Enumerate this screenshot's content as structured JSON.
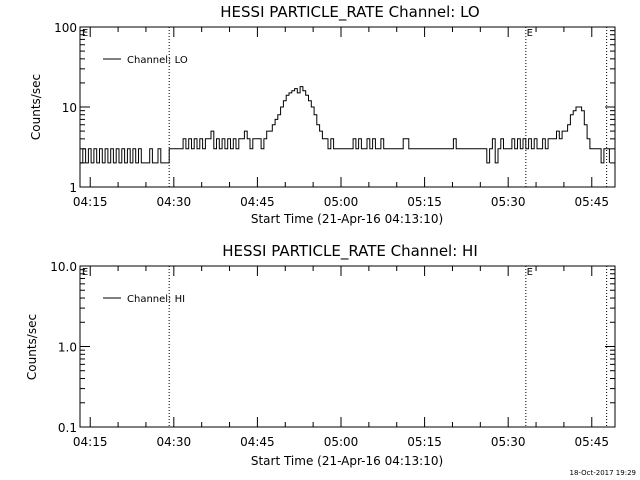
{
  "chart_data": [
    {
      "type": "line",
      "title": "HESSI PARTICLE_RATE Channel: LO",
      "xlabel": "Start Time (21-Apr-16 04:13:10)",
      "ylabel": "Counts/sec",
      "yscale": "log",
      "ylim": [
        1,
        100
      ],
      "xlim": [
        "04:13:10",
        "05:49:10"
      ],
      "yticks": [
        "1",
        "10",
        "100"
      ],
      "xticks": [
        "04:15",
        "04:30",
        "04:45",
        "05:00",
        "05:15",
        "05:30",
        "05:45"
      ],
      "legend": {
        "label": "Channel: LO",
        "placement": "top-left"
      },
      "marker_labels": [
        "E",
        "E"
      ],
      "series": [
        {
          "name": "Channel: LO",
          "points": [
            [
              "04:13:10",
              2
            ],
            [
              "04:13:40",
              3
            ],
            [
              "04:14:10",
              2
            ],
            [
              "04:14:40",
              3
            ],
            [
              "04:15:10",
              2
            ],
            [
              "04:15:40",
              3
            ],
            [
              "04:16:10",
              2
            ],
            [
              "04:16:40",
              3
            ],
            [
              "04:17:10",
              2
            ],
            [
              "04:17:40",
              3
            ],
            [
              "04:18:10",
              2
            ],
            [
              "04:18:40",
              3
            ],
            [
              "04:19:10",
              2
            ],
            [
              "04:19:40",
              3
            ],
            [
              "04:20:10",
              2
            ],
            [
              "04:20:40",
              3
            ],
            [
              "04:21:10",
              2
            ],
            [
              "04:21:40",
              3
            ],
            [
              "04:22:10",
              2
            ],
            [
              "04:22:40",
              3
            ],
            [
              "04:23:10",
              2
            ],
            [
              "04:23:40",
              3
            ],
            [
              "04:24:10",
              2
            ],
            [
              "04:24:40",
              2
            ],
            [
              "04:25:10",
              2
            ],
            [
              "04:25:40",
              3
            ],
            [
              "04:26:10",
              2
            ],
            [
              "04:26:40",
              2
            ],
            [
              "04:27:10",
              3
            ],
            [
              "04:27:40",
              2
            ],
            [
              "04:28:10",
              2
            ],
            [
              "04:28:40",
              2
            ],
            [
              "04:29:10",
              3
            ],
            [
              "04:29:40",
              3
            ],
            [
              "04:30:10",
              3
            ],
            [
              "04:30:40",
              3
            ],
            [
              "04:31:10",
              3
            ],
            [
              "04:31:40",
              4
            ],
            [
              "04:32:10",
              3
            ],
            [
              "04:32:40",
              4
            ],
            [
              "04:33:10",
              3
            ],
            [
              "04:33:40",
              4
            ],
            [
              "04:34:10",
              3
            ],
            [
              "04:34:40",
              4
            ],
            [
              "04:35:10",
              3
            ],
            [
              "04:35:40",
              4
            ],
            [
              "04:36:10",
              4
            ],
            [
              "04:36:40",
              5
            ],
            [
              "04:37:10",
              3
            ],
            [
              "04:37:40",
              4
            ],
            [
              "04:38:10",
              3
            ],
            [
              "04:38:40",
              4
            ],
            [
              "04:39:10",
              3
            ],
            [
              "04:39:40",
              4
            ],
            [
              "04:40:10",
              3
            ],
            [
              "04:40:40",
              4
            ],
            [
              "04:41:10",
              3
            ],
            [
              "04:41:40",
              4
            ],
            [
              "04:42:10",
              4
            ],
            [
              "04:42:40",
              5
            ],
            [
              "04:43:10",
              4
            ],
            [
              "04:43:40",
              3
            ],
            [
              "04:44:10",
              4
            ],
            [
              "04:44:40",
              4
            ],
            [
              "04:45:10",
              4
            ],
            [
              "04:45:40",
              3
            ],
            [
              "04:46:10",
              4
            ],
            [
              "04:46:40",
              5
            ],
            [
              "04:47:10",
              5
            ],
            [
              "04:47:40",
              6
            ],
            [
              "04:48:10",
              7
            ],
            [
              "04:48:40",
              8
            ],
            [
              "04:49:10",
              10
            ],
            [
              "04:49:40",
              12
            ],
            [
              "04:50:10",
              14
            ],
            [
              "04:50:40",
              15
            ],
            [
              "04:51:10",
              16
            ],
            [
              "04:51:40",
              17
            ],
            [
              "04:52:10",
              15
            ],
            [
              "04:52:40",
              18
            ],
            [
              "04:53:10",
              16
            ],
            [
              "04:53:40",
              14
            ],
            [
              "04:54:10",
              12
            ],
            [
              "04:54:40",
              10
            ],
            [
              "04:55:10",
              8
            ],
            [
              "04:55:40",
              6
            ],
            [
              "04:56:10",
              5
            ],
            [
              "04:56:40",
              4
            ],
            [
              "04:57:10",
              4
            ],
            [
              "04:57:40",
              3
            ],
            [
              "04:58:10",
              4
            ],
            [
              "04:58:40",
              3
            ],
            [
              "04:59:10",
              3
            ],
            [
              "04:59:40",
              3
            ],
            [
              "05:00:10",
              3
            ],
            [
              "05:00:40",
              3
            ],
            [
              "05:01:10",
              3
            ],
            [
              "05:01:40",
              3
            ],
            [
              "05:02:10",
              4
            ],
            [
              "05:02:40",
              3
            ],
            [
              "05:03:10",
              4
            ],
            [
              "05:03:40",
              3
            ],
            [
              "05:04:10",
              3
            ],
            [
              "05:04:40",
              4
            ],
            [
              "05:05:10",
              3
            ],
            [
              "05:05:40",
              4
            ],
            [
              "05:06:10",
              3
            ],
            [
              "05:06:40",
              3
            ],
            [
              "05:07:10",
              4
            ],
            [
              "05:07:40",
              3
            ],
            [
              "05:08:10",
              3
            ],
            [
              "05:08:40",
              3
            ],
            [
              "05:09:10",
              3
            ],
            [
              "05:09:40",
              3
            ],
            [
              "05:10:10",
              3
            ],
            [
              "05:10:40",
              3
            ],
            [
              "05:11:10",
              4
            ],
            [
              "05:11:40",
              4
            ],
            [
              "05:12:10",
              3
            ],
            [
              "05:12:40",
              3
            ],
            [
              "05:13:10",
              3
            ],
            [
              "05:13:40",
              3
            ],
            [
              "05:14:10",
              3
            ],
            [
              "05:14:40",
              3
            ],
            [
              "05:15:10",
              3
            ],
            [
              "05:15:40",
              3
            ],
            [
              "05:16:10",
              3
            ],
            [
              "05:16:40",
              3
            ],
            [
              "05:17:10",
              3
            ],
            [
              "05:17:40",
              3
            ],
            [
              "05:18:10",
              3
            ],
            [
              "05:18:40",
              3
            ],
            [
              "05:19:10",
              3
            ],
            [
              "05:19:40",
              3
            ],
            [
              "05:20:10",
              4
            ],
            [
              "05:20:40",
              3
            ],
            [
              "05:21:10",
              3
            ],
            [
              "05:21:40",
              3
            ],
            [
              "05:22:10",
              3
            ],
            [
              "05:22:40",
              3
            ],
            [
              "05:23:10",
              3
            ],
            [
              "05:23:40",
              3
            ],
            [
              "05:24:10",
              3
            ],
            [
              "05:24:40",
              3
            ],
            [
              "05:25:10",
              3
            ],
            [
              "05:25:40",
              3
            ],
            [
              "05:26:10",
              2
            ],
            [
              "05:26:40",
              3
            ],
            [
              "05:27:10",
              4
            ],
            [
              "05:27:40",
              2
            ],
            [
              "05:28:10",
              3
            ],
            [
              "05:28:40",
              4
            ],
            [
              "05:29:10",
              3
            ],
            [
              "05:29:40",
              3
            ],
            [
              "05:30:10",
              3
            ],
            [
              "05:30:40",
              4
            ],
            [
              "05:31:10",
              3
            ],
            [
              "05:31:40",
              4
            ],
            [
              "05:32:10",
              3
            ],
            [
              "05:32:40",
              4
            ],
            [
              "05:33:10",
              3
            ],
            [
              "05:33:40",
              4
            ],
            [
              "05:34:10",
              3
            ],
            [
              "05:34:40",
              4
            ],
            [
              "05:35:10",
              3
            ],
            [
              "05:35:40",
              3
            ],
            [
              "05:36:10",
              4
            ],
            [
              "05:36:40",
              3
            ],
            [
              "05:37:10",
              4
            ],
            [
              "05:37:40",
              4
            ],
            [
              "05:38:10",
              4
            ],
            [
              "05:38:40",
              5
            ],
            [
              "05:39:10",
              4
            ],
            [
              "05:39:40",
              5
            ],
            [
              "05:40:10",
              5
            ],
            [
              "05:40:40",
              6
            ],
            [
              "05:41:10",
              8
            ],
            [
              "05:41:40",
              9
            ],
            [
              "05:42:10",
              10
            ],
            [
              "05:42:40",
              10
            ],
            [
              "05:43:10",
              9
            ],
            [
              "05:43:40",
              6
            ],
            [
              "05:44:10",
              4
            ],
            [
              "05:44:40",
              3
            ],
            [
              "05:45:10",
              3
            ],
            [
              "05:45:40",
              3
            ],
            [
              "05:46:10",
              3
            ],
            [
              "05:46:40",
              2
            ],
            [
              "05:47:10",
              3
            ],
            [
              "05:47:40",
              3
            ],
            [
              "05:48:10",
              2
            ]
          ]
        }
      ]
    },
    {
      "type": "line",
      "title": "HESSI PARTICLE_RATE Channel: HI",
      "xlabel": "Start Time (21-Apr-16 04:13:10)",
      "ylabel": "Counts/sec",
      "yscale": "log",
      "ylim": [
        0.1,
        10
      ],
      "xlim": [
        "04:13:10",
        "05:49:10"
      ],
      "yticks": [
        "0.1",
        "1.0",
        "10.0"
      ],
      "xticks": [
        "04:15",
        "04:30",
        "04:45",
        "05:00",
        "05:15",
        "05:30",
        "05:45"
      ],
      "legend": {
        "label": "Channel: HI",
        "placement": "top-left"
      },
      "marker_labels": [
        "E",
        "E"
      ],
      "series": [
        {
          "name": "Channel: HI",
          "points": []
        }
      ]
    }
  ],
  "markers": {
    "times": [
      "04:29:10",
      "05:33:10",
      "05:47:40"
    ]
  },
  "footer": {
    "timestamp": "18-Oct-2017 19:29"
  }
}
